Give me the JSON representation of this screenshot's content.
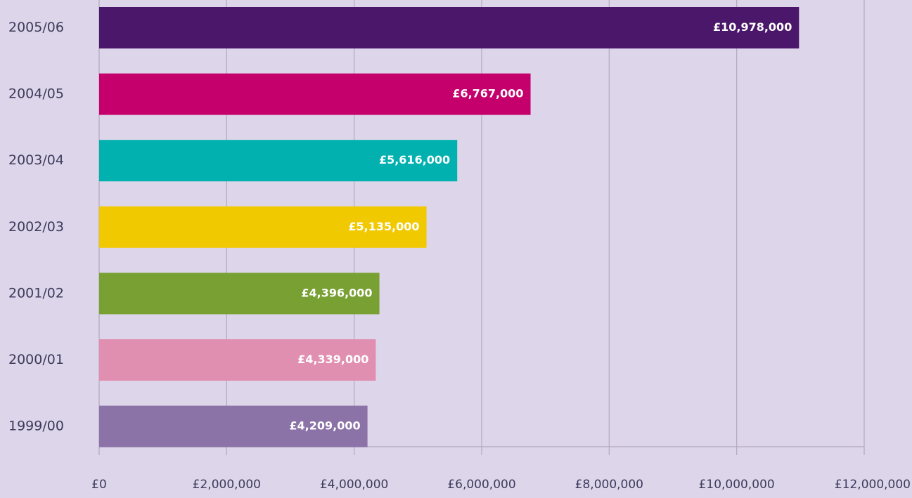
{
  "chart_data": {
    "type": "hbar",
    "categories": [
      "2005/06",
      "2004/05",
      "2003/04",
      "2002/03",
      "2001/02",
      "2000/01",
      "1999/00"
    ],
    "values": [
      10978000,
      6767000,
      5616000,
      5135000,
      4396000,
      4339000,
      4209000
    ],
    "value_labels": [
      "£10,978,000",
      "£6,767,000",
      "£5,616,000",
      "£5,135,000",
      "£4,396,000",
      "£4,339,000",
      "£4,209,000"
    ],
    "colors": [
      "#4a176a",
      "#c5006d",
      "#00b1b0",
      "#f1c900",
      "#78a032",
      "#e18fb0",
      "#8b72a7"
    ],
    "xlim": [
      0,
      12000000
    ],
    "xticks": [
      {
        "value": 0,
        "label": "£0"
      },
      {
        "value": 2000000,
        "label": "£2,000,000"
      },
      {
        "value": 4000000,
        "label": "£4,000,000"
      },
      {
        "value": 6000000,
        "label": "£6,000,000"
      },
      {
        "value": 8000000,
        "label": "£8,000,000"
      },
      {
        "value": 10000000,
        "label": "£10,000,000"
      },
      {
        "value": 12000000,
        "label": "£12,000,000"
      }
    ],
    "grid": true
  }
}
